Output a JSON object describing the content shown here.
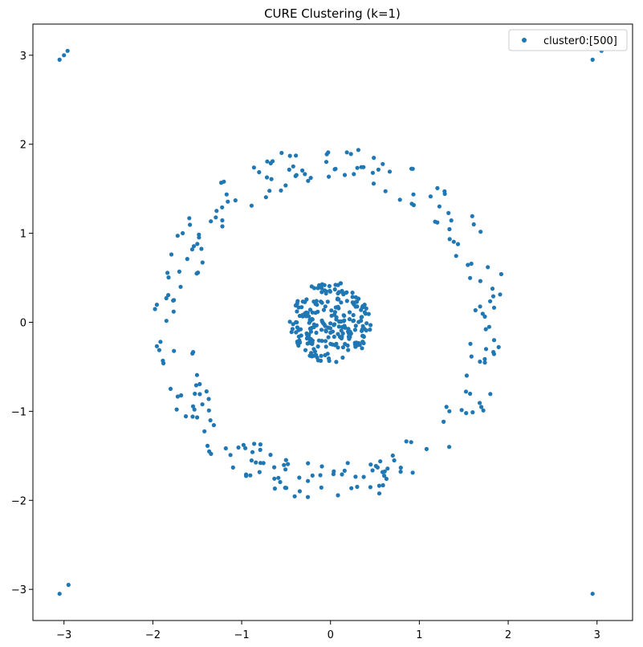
{
  "chart_data": {
    "type": "scatter",
    "title": "CURE Clustering (k=1)",
    "xlabel": "",
    "ylabel": "",
    "xlim": [
      -3.35,
      3.4
    ],
    "ylim": [
      -3.35,
      3.35
    ],
    "xticks": [
      -3,
      -2,
      -1,
      0,
      1,
      2,
      3
    ],
    "yticks": [
      -3,
      -2,
      -1,
      0,
      1,
      2,
      3
    ],
    "xtick_labels": [
      "−3",
      "−2",
      "−1",
      "0",
      "1",
      "2",
      "3"
    ],
    "ytick_labels": [
      "−3",
      "−2",
      "−1",
      "0",
      "1",
      "2",
      "3"
    ],
    "grid": false,
    "legend_position": "top-right",
    "series": [
      {
        "name": "cluster0:[500]",
        "color": "#1f77b4",
        "outliers": [
          [
            -3.05,
            2.95
          ],
          [
            -3.0,
            3.0
          ],
          [
            -2.96,
            3.05
          ],
          [
            2.95,
            2.95
          ],
          [
            3.05,
            3.05
          ],
          [
            -3.05,
            -3.05
          ],
          [
            -2.95,
            -2.95
          ],
          [
            2.95,
            -3.05
          ]
        ],
        "ring": {
          "center": [
            0,
            0
          ],
          "radius_min": 1.58,
          "radius_max": 2.0,
          "count": 250
        },
        "inner_disk": {
          "center": [
            0,
            0
          ],
          "radius": 0.46,
          "count": 242
        }
      }
    ]
  }
}
